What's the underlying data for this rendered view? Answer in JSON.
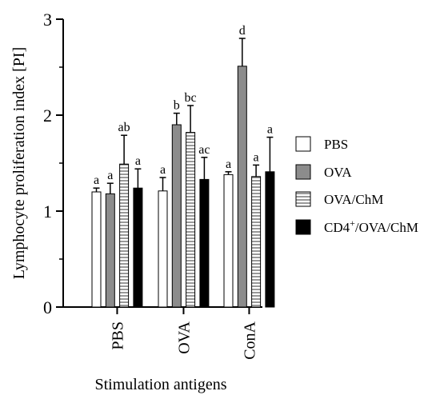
{
  "chart_data": {
    "type": "bar",
    "xlabel": "Stimulation antigens",
    "ylabel": "Lymphocyte proliferation index [PI]",
    "ylim": [
      0,
      3
    ],
    "yticks": [
      "0",
      "1",
      "2",
      "3"
    ],
    "categories": [
      "PBS",
      "OVA",
      "ConA"
    ],
    "grid": false,
    "legend_position": "right",
    "series": [
      {
        "name": "PBS",
        "fill": "#ffffff",
        "pattern": "none",
        "values": [
          1.2,
          1.21,
          1.38
        ],
        "errors": [
          0.04,
          0.14,
          0.03
        ],
        "letters": [
          "a",
          "a",
          "a"
        ]
      },
      {
        "name": "OVA",
        "fill": "#8c8c8c",
        "pattern": "none",
        "values": [
          1.18,
          1.9,
          2.51
        ],
        "errors": [
          0.11,
          0.12,
          0.29
        ],
        "letters": [
          "a",
          "b",
          "d"
        ]
      },
      {
        "name": "OVA/ChM",
        "fill": "#ffffff",
        "pattern": "horizontal-lines",
        "values": [
          1.49,
          1.82,
          1.36
        ],
        "errors": [
          0.3,
          0.28,
          0.12
        ],
        "letters": [
          "ab",
          "bc",
          "a"
        ]
      },
      {
        "name_main": "CD4",
        "name_sup": "+",
        "name_rest": "/OVA/ChM",
        "fill": "#000000",
        "pattern": "none",
        "values": [
          1.24,
          1.33,
          1.41
        ],
        "errors": [
          0.2,
          0.23,
          0.36
        ],
        "letters": [
          "a",
          "ac",
          "a"
        ]
      }
    ]
  }
}
